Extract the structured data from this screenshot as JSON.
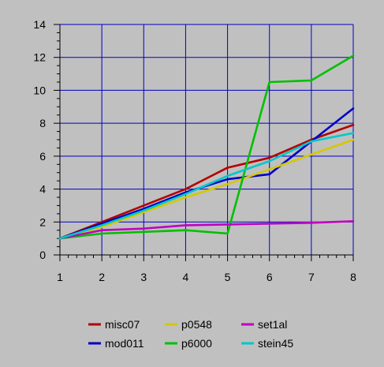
{
  "chart_data": {
    "type": "line",
    "x": [
      1,
      2,
      3,
      4,
      5,
      6,
      7,
      8
    ],
    "xlim": [
      1,
      8
    ],
    "ylim": [
      0,
      14
    ],
    "x_ticks": [
      "1",
      "2",
      "3",
      "4",
      "5",
      "6",
      "7",
      "8"
    ],
    "y_ticks": [
      "0",
      "2",
      "4",
      "6",
      "8",
      "10",
      "12",
      "14"
    ],
    "grid": true,
    "grid_color": "#0000c8",
    "plot_background": "#c0c0c0",
    "legend_position": "bottom",
    "series": [
      {
        "name": "misc07",
        "color": "#b40000",
        "values": [
          1.0,
          2.0,
          3.0,
          4.0,
          5.3,
          5.9,
          7.0,
          7.9
        ]
      },
      {
        "name": "mod011",
        "color": "#0000c8",
        "values": [
          1.0,
          1.9,
          2.8,
          3.8,
          4.6,
          4.9,
          6.9,
          8.9
        ]
      },
      {
        "name": "p0548",
        "color": "#d4c800",
        "values": [
          1.0,
          1.7,
          2.6,
          3.5,
          4.3,
          5.2,
          6.1,
          7.0
        ]
      },
      {
        "name": "p6000",
        "color": "#00c000",
        "values": [
          1.0,
          1.3,
          1.4,
          1.5,
          1.3,
          10.5,
          10.6,
          12.1
        ]
      },
      {
        "name": "set1al",
        "color": "#c000c0",
        "values": [
          1.0,
          1.5,
          1.6,
          1.8,
          1.85,
          1.9,
          1.95,
          2.05
        ]
      },
      {
        "name": "stein45",
        "color": "#00c8c8",
        "values": [
          1.0,
          1.8,
          2.7,
          3.7,
          4.8,
          5.7,
          6.9,
          7.4
        ]
      }
    ]
  }
}
